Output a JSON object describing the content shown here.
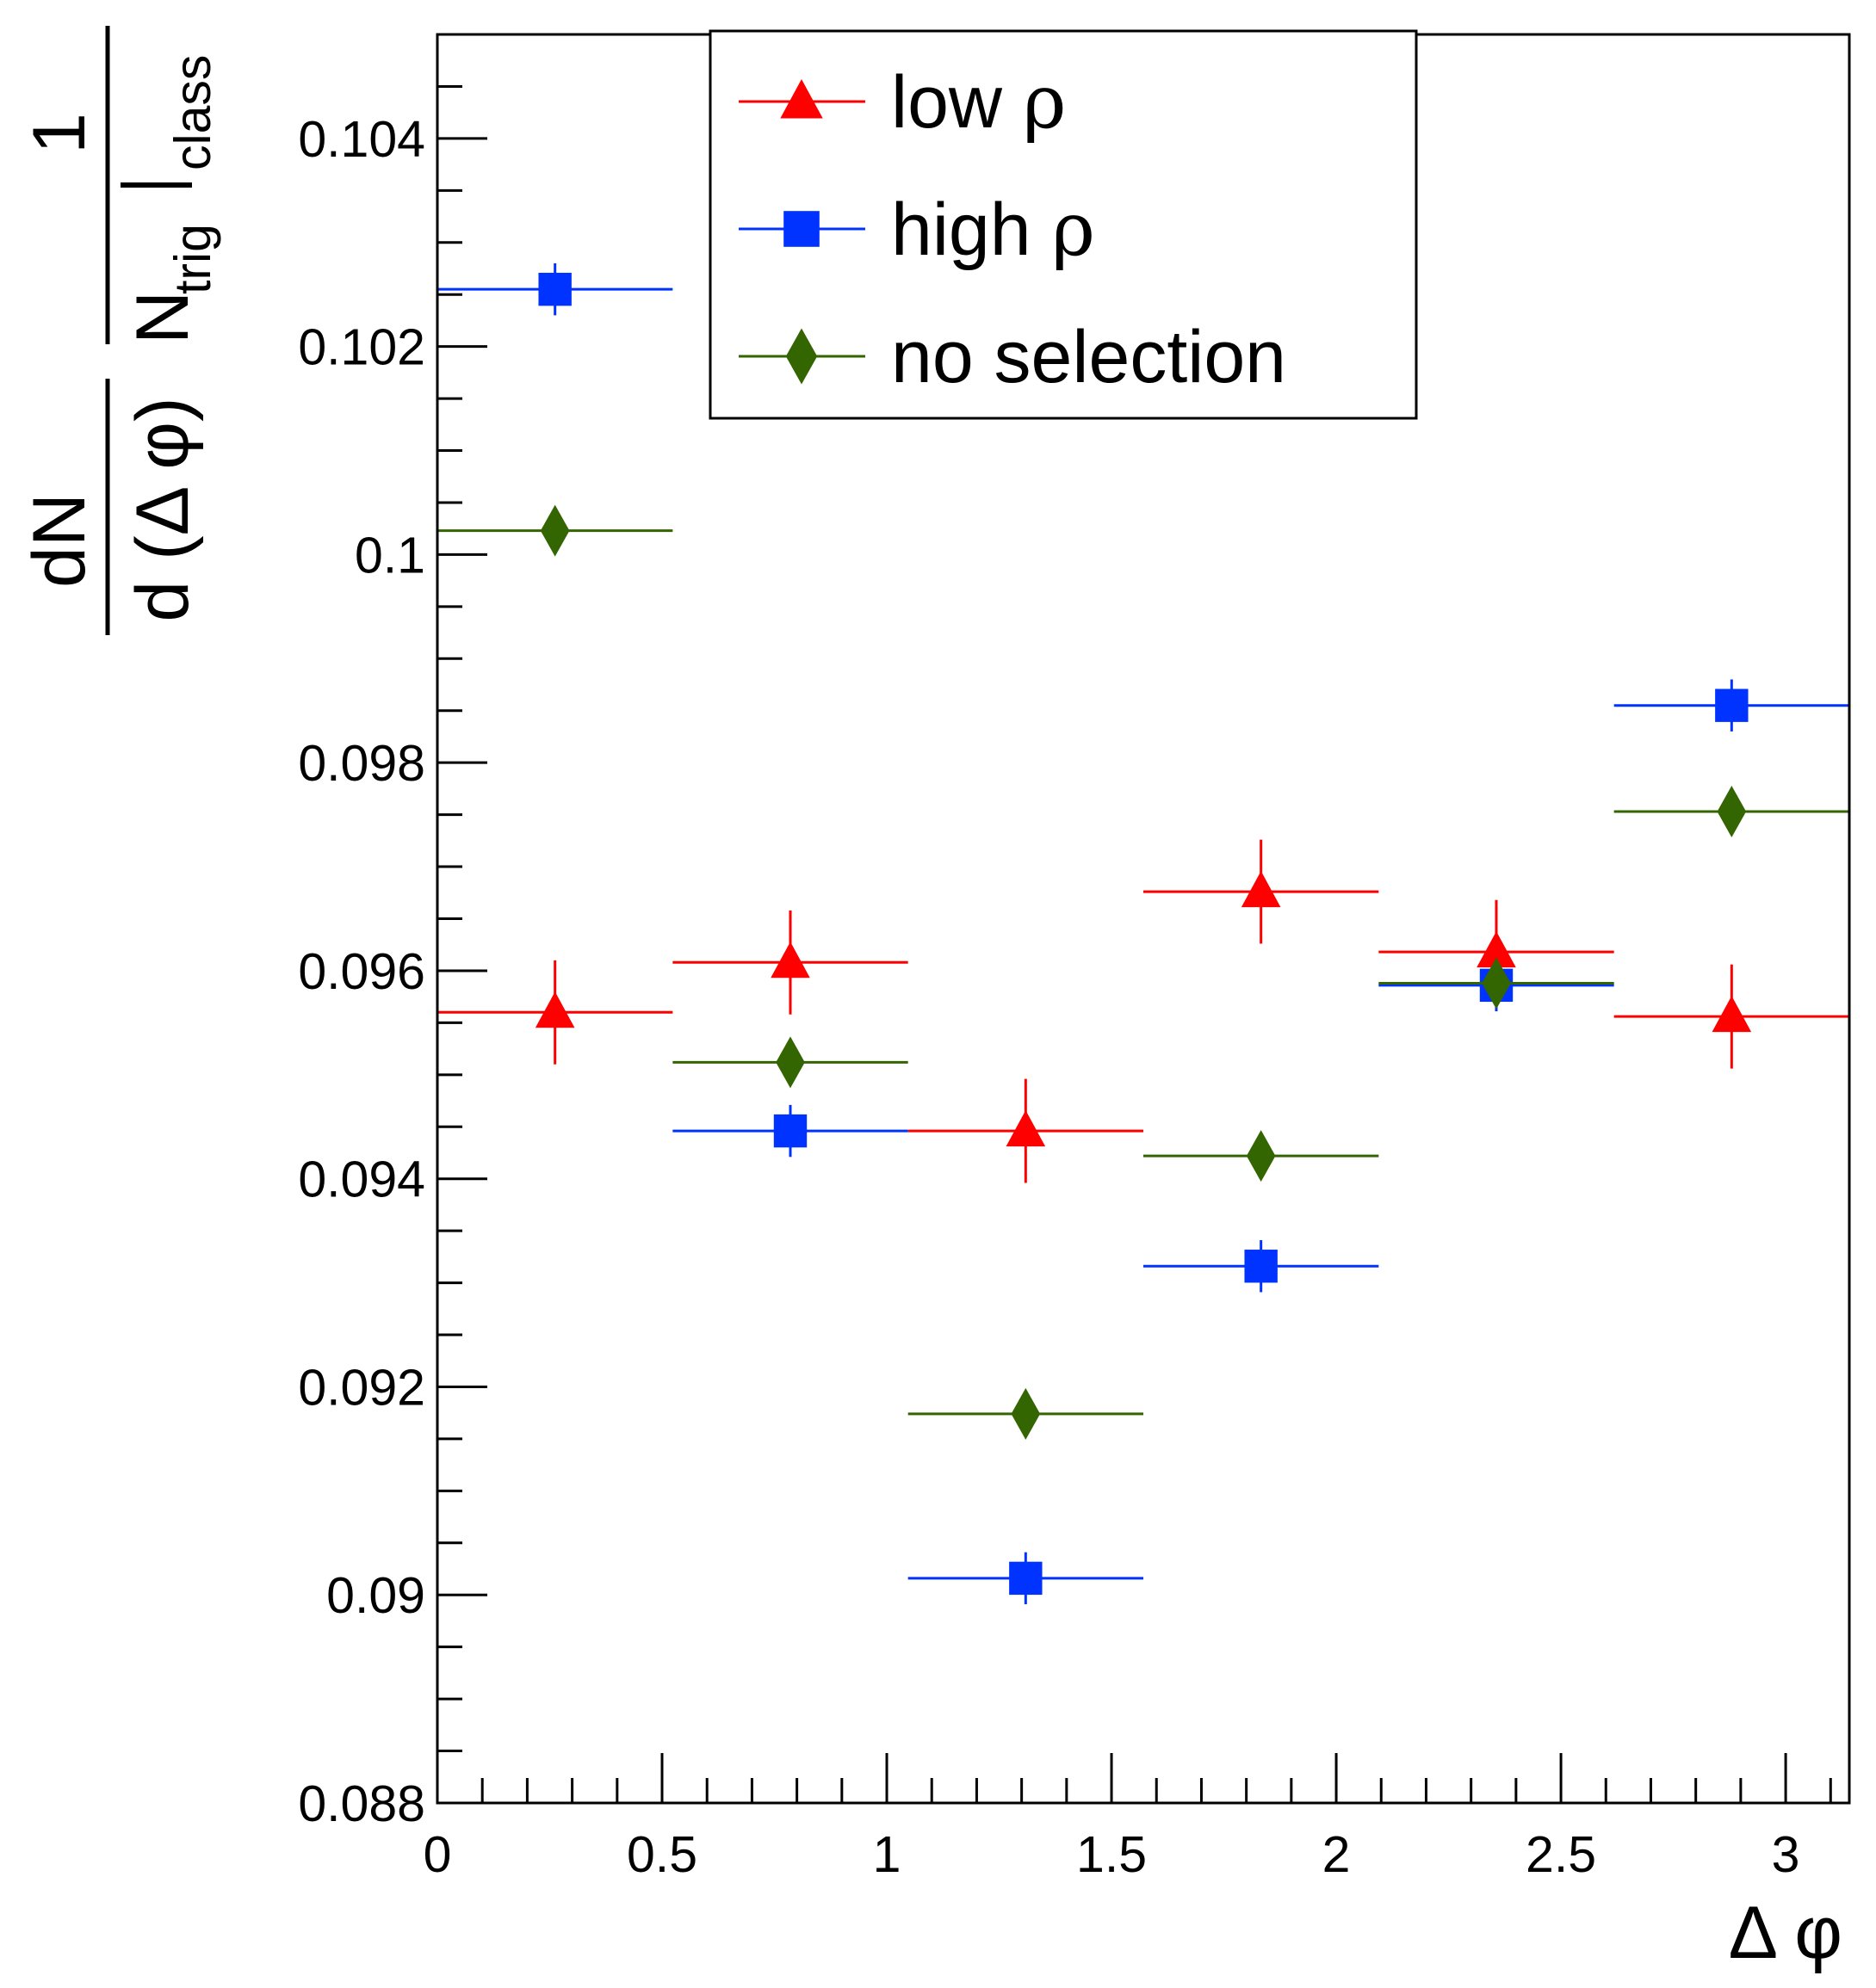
{
  "chart_data": {
    "type": "scatter",
    "title": "",
    "xlabel": "Δ φ",
    "ylabel": {
      "numerator": "dN",
      "denominator": "d (Δ φ)",
      "one": "1",
      "n": "N",
      "trig": "trig",
      "class": "class"
    },
    "xlim": [
      0,
      3.1416
    ],
    "ylim": [
      0.088,
      0.105
    ],
    "x_ticks": [
      0,
      0.5,
      1,
      1.5,
      2,
      2.5,
      3
    ],
    "x_tick_labels": [
      "0",
      "0.5",
      "1",
      "1.5",
      "2",
      "2.5",
      "3"
    ],
    "y_ticks": [
      0.088,
      0.09,
      0.092,
      0.094,
      0.096,
      0.098,
      0.1,
      0.102,
      0.104
    ],
    "y_tick_labels": [
      "0.088",
      "0.09",
      "0.092",
      "0.094",
      "0.096",
      "0.098",
      "0.1",
      "0.102",
      "0.104"
    ],
    "grid": false,
    "legend_position": "top-center",
    "x": [
      0.2618,
      0.7854,
      1.309,
      1.8326,
      2.3562,
      2.8798
    ],
    "x_bin_halfwidth": 0.2618,
    "series": [
      {
        "name": "low ρ",
        "label_main": "low ",
        "label_symbol": "ρ",
        "marker": "triangle",
        "color": "#ff0000",
        "values": [
          0.0956,
          0.09608,
          0.09446,
          0.09676,
          0.09618,
          0.09556
        ],
        "errors": [
          0.0005,
          0.0005,
          0.0005,
          0.0005,
          0.0005,
          0.0005
        ]
      },
      {
        "name": "high ρ",
        "label_main": "high ",
        "label_symbol": "ρ",
        "marker": "square",
        "color": "#0033ff",
        "values": [
          0.10255,
          0.09446,
          0.09016,
          0.09316,
          0.09586,
          0.09855
        ],
        "errors": [
          0.00025,
          0.00025,
          0.00025,
          0.00025,
          0.00025,
          0.00025
        ]
      },
      {
        "name": "no selection",
        "label_main": "no selection",
        "label_symbol": "",
        "marker": "diamond",
        "color": "#336600",
        "values": [
          0.10023,
          0.09512,
          0.09174,
          0.09422,
          0.09588,
          0.09753
        ],
        "errors": [
          0.00012,
          0.00012,
          0.00012,
          0.00012,
          0.00012,
          0.00012
        ]
      }
    ]
  }
}
